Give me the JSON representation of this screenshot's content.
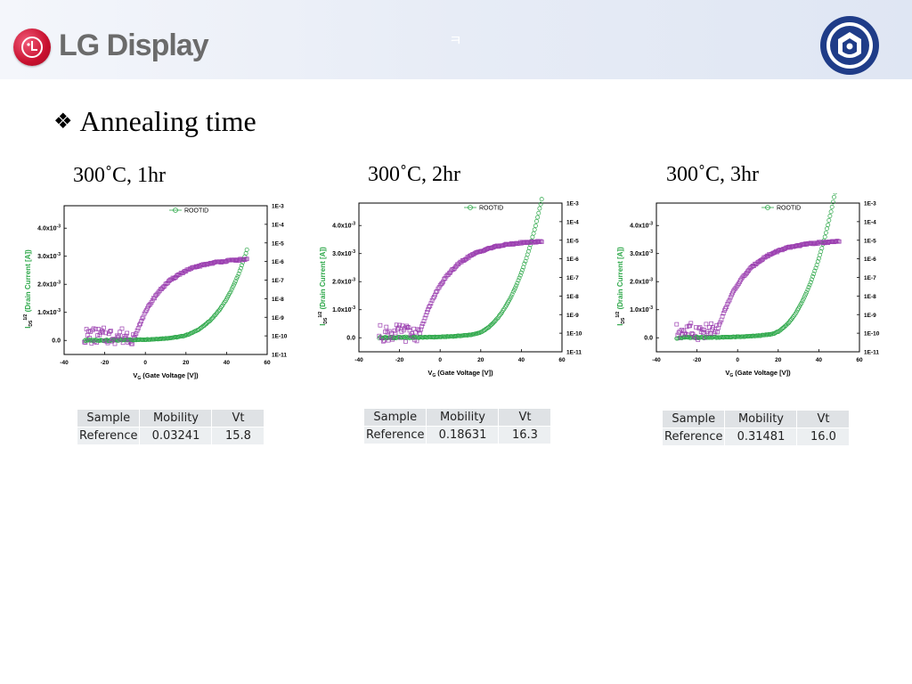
{
  "header": {
    "brand": "LG Display",
    "mark": "ㅋ",
    "colors": {
      "lg_red": "#c8102e",
      "brand_gray": "#6b6b6b",
      "seal_blue": "#1f3c88"
    }
  },
  "slide": {
    "bullet": "❖",
    "title": "Annealing time"
  },
  "panels": [
    {
      "caption": "300˚C, 1hr",
      "table": {
        "headers": [
          "Sample",
          "Mobility",
          "Vt"
        ],
        "row": [
          "Reference",
          "0.03241",
          "15.8"
        ]
      }
    },
    {
      "caption": "300˚C, 2hr",
      "table": {
        "headers": [
          "Sample",
          "Mobility",
          "Vt"
        ],
        "row": [
          "Reference",
          "0.18631",
          "16.3"
        ]
      }
    },
    {
      "caption": "300˚C, 3hr",
      "table": {
        "headers": [
          "Sample",
          "Mobility",
          "Vt"
        ],
        "row": [
          "Reference",
          "0.31481",
          "16.0"
        ]
      }
    }
  ],
  "chart_data": [
    {
      "type": "scatter",
      "xlabel": "V_G (Gate Voltage [V])",
      "ylabel_left": "I_DS^1/2 (Drain Current [A])",
      "ylabel_right": "I_DS (Drain Current [A])",
      "xlim": [
        -40,
        60
      ],
      "xticks": [
        "-40",
        "-20",
        "0",
        "20",
        "40",
        "60"
      ],
      "ylim_left": [
        -0.0005,
        0.0048
      ],
      "yticks_left": [
        "0.0",
        "1.0x10^-3",
        "2.0x10^-3",
        "3.0x10^-3",
        "4.0x10^-3"
      ],
      "ylim_right_log10": [
        -11,
        -3
      ],
      "yticks_right": [
        "1E-11",
        "1E-10",
        "1E-9",
        "1E-8",
        "1E-7",
        "1E-6",
        "1E-5",
        "1E-4",
        "1E-3"
      ],
      "legend": {
        "label": "ROOTID",
        "position": "top"
      },
      "colors": {
        "sqrt": "#2ea84a",
        "log": "#9b3fb0"
      },
      "series": [
        {
          "name": "ROOTID",
          "axis": "left",
          "vt": 15.8,
          "end_value": 0.00115,
          "noise_floor": 0.0
        },
        {
          "axis": "right",
          "off_level_log10": -10.0,
          "on_level_log10": -5.8,
          "onset": -5
        }
      ]
    },
    {
      "type": "scatter",
      "xlabel": "V_G (Gate Voltage [V])",
      "ylabel_left": "I_DS^1/2 (Drain Current [A])",
      "ylabel_right": "I_DS (Drain Current [A])",
      "xlim": [
        -40,
        60
      ],
      "xticks": [
        "-40",
        "-20",
        "0",
        "20",
        "40",
        "60"
      ],
      "ylim_left": [
        -0.0005,
        0.0048
      ],
      "yticks_left": [
        "0.0",
        "1.0x10^-3",
        "2.0x10^-3",
        "3.0x10^-3",
        "4.0x10^-3"
      ],
      "ylim_right_log10": [
        -11,
        -3
      ],
      "yticks_right": [
        "1E-11",
        "1E-10",
        "1E-9",
        "1E-8",
        "1E-7",
        "1E-6",
        "1E-5",
        "1E-4",
        "1E-3"
      ],
      "legend": {
        "label": "ROOTID",
        "position": "top"
      },
      "colors": {
        "sqrt": "#2ea84a",
        "log": "#9b3fb0"
      },
      "series": [
        {
          "name": "ROOTID",
          "axis": "left",
          "vt": 16.3,
          "end_value": 0.00295,
          "noise_floor": 0.0
        },
        {
          "axis": "right",
          "off_level_log10": -10.0,
          "on_level_log10": -5.0,
          "onset": -10
        }
      ]
    },
    {
      "type": "scatter",
      "xlabel": "V_G (Gate Voltage [V])",
      "ylabel_left": "I_DS^1/2 (Drain Current [A])",
      "ylabel_right": "I_DS (Drain Current [A])",
      "xlim": [
        -40,
        60
      ],
      "xticks": [
        "-40",
        "-20",
        "0",
        "20",
        "40",
        "60"
      ],
      "ylim_left": [
        -0.0005,
        0.0048
      ],
      "yticks_left": [
        "0.0",
        "1.0x10^-3",
        "2.0x10^-3",
        "3.0x10^-3",
        "4.0x10^-3"
      ],
      "ylim_right_log10": [
        -11,
        -3
      ],
      "yticks_right": [
        "1E-11",
        "1E-10",
        "1E-9",
        "1E-8",
        "1E-7",
        "1E-6",
        "1E-5",
        "1E-4",
        "1E-3"
      ],
      "legend": {
        "label": "ROOTID",
        "position": "top"
      },
      "colors": {
        "sqrt": "#2ea84a",
        "log": "#9b3fb0"
      },
      "series": [
        {
          "name": "ROOTID",
          "axis": "left",
          "vt": 16.0,
          "end_value": 0.0039,
          "noise_floor": 0.0
        },
        {
          "axis": "right",
          "off_level_log10": -9.9,
          "on_level_log10": -5.0,
          "onset": -10
        }
      ]
    }
  ]
}
